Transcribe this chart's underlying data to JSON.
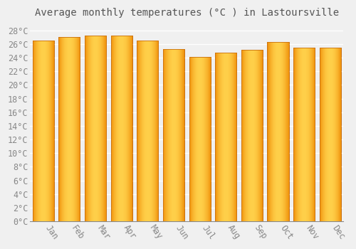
{
  "title": "Average monthly temperatures (°C ) in Lastoursville",
  "months": [
    "Jan",
    "Feb",
    "Mar",
    "Apr",
    "May",
    "Jun",
    "Jul",
    "Aug",
    "Sep",
    "Oct",
    "Nov",
    "Dec"
  ],
  "values": [
    26.5,
    27.0,
    27.3,
    27.3,
    26.5,
    25.3,
    24.1,
    24.7,
    25.2,
    26.3,
    25.5,
    25.5
  ],
  "bar_color_center": "#FFD04A",
  "bar_color_edge": "#F0900A",
  "bar_edge_color": "#C87010",
  "ylim": [
    0,
    29
  ],
  "ytick_step": 2,
  "background_color": "#F0F0F0",
  "grid_color": "#FFFFFF",
  "title_fontsize": 10,
  "tick_fontsize": 8.5,
  "font_family": "monospace",
  "bar_width": 0.82
}
